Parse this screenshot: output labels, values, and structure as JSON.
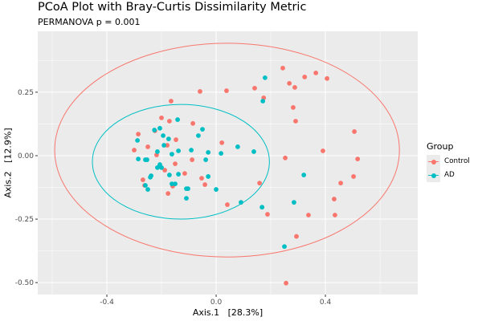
{
  "chart_data": {
    "type": "scatter",
    "title": "PCoA Plot with Bray-Curtis Dissimilarity Metric",
    "subtitle": "PERMANOVA p = 0.001",
    "xlabel": "Axis.1   [28.3%]",
    "ylabel": "Axis.2   [12.9%]",
    "xlim": [
      -0.653,
      0.738
    ],
    "ylim": [
      -0.547,
      0.49
    ],
    "xticks": [
      {
        "value": -0.4,
        "label": "-0.4"
      },
      {
        "value": 0.0,
        "label": "0.0"
      },
      {
        "value": 0.4,
        "label": "0.4"
      }
    ],
    "yticks": [
      {
        "value": 0.25,
        "label": "0.25"
      },
      {
        "value": 0.0,
        "label": "0.00"
      },
      {
        "value": -0.25,
        "label": "-0.25"
      },
      {
        "value": -0.5,
        "label": "-0.50"
      }
    ],
    "grid": true,
    "legend": {
      "title": "Group",
      "position": "right"
    },
    "series": [
      {
        "name": "Control",
        "color": "#F8766D",
        "points": [
          [
            -0.165,
            0.215
          ],
          [
            -0.2,
            0.149
          ],
          [
            -0.171,
            0.136
          ],
          [
            -0.224,
            0.098
          ],
          [
            -0.285,
            0.085
          ],
          [
            -0.25,
            0.035
          ],
          [
            -0.179,
            0.041
          ],
          [
            -0.3,
            0.022
          ],
          [
            -0.147,
            0.063
          ],
          [
            -0.218,
            0.003
          ],
          [
            -0.188,
            -0.057
          ],
          [
            -0.15,
            -0.032
          ],
          [
            -0.115,
            -0.07
          ],
          [
            -0.268,
            -0.095
          ],
          [
            -0.262,
            -0.117
          ],
          [
            -0.159,
            -0.12
          ],
          [
            -0.176,
            -0.149
          ],
          [
            -0.085,
            0.127
          ],
          [
            0.021,
            0.051
          ],
          [
            -0.088,
            -0.016
          ],
          [
            -0.053,
            -0.089
          ],
          [
            -0.041,
            -0.114
          ],
          [
            0.244,
            0.345
          ],
          [
            0.324,
            0.31
          ],
          [
            0.365,
            0.326
          ],
          [
            0.406,
            0.304
          ],
          [
            0.268,
            0.285
          ],
          [
            0.288,
            0.269
          ],
          [
            -0.059,
            0.253
          ],
          [
            0.038,
            0.256
          ],
          [
            0.141,
            0.266
          ],
          [
            0.174,
            0.228
          ],
          [
            0.282,
            0.19
          ],
          [
            0.291,
            0.136
          ],
          [
            0.506,
            0.095
          ],
          [
            0.391,
            0.019
          ],
          [
            0.253,
            -0.009
          ],
          [
            0.518,
            -0.013
          ],
          [
            0.503,
            -0.082
          ],
          [
            0.456,
            -0.108
          ],
          [
            0.159,
            -0.108
          ],
          [
            0.432,
            -0.171
          ],
          [
            0.188,
            -0.231
          ],
          [
            0.338,
            -0.234
          ],
          [
            0.435,
            -0.234
          ],
          [
            0.041,
            -0.193
          ],
          [
            0.294,
            -0.318
          ],
          [
            0.256,
            -0.502
          ]
        ]
      },
      {
        "name": "AD",
        "color": "#00BFC4",
        "points": [
          [
            -0.141,
            0.142
          ],
          [
            -0.206,
            0.108
          ],
          [
            -0.226,
            0.101
          ],
          [
            -0.288,
            0.06
          ],
          [
            -0.194,
            0.079
          ],
          [
            -0.174,
            0.066
          ],
          [
            -0.191,
            0.041
          ],
          [
            -0.138,
            0.019
          ],
          [
            -0.215,
            0.016
          ],
          [
            -0.162,
            0.006
          ],
          [
            -0.285,
            -0.013
          ],
          [
            -0.259,
            -0.016
          ],
          [
            -0.253,
            -0.016
          ],
          [
            -0.206,
            -0.035
          ],
          [
            -0.215,
            -0.047
          ],
          [
            -0.2,
            -0.047
          ],
          [
            -0.171,
            -0.076
          ],
          [
            -0.138,
            -0.073
          ],
          [
            -0.238,
            -0.079
          ],
          [
            -0.241,
            -0.085
          ],
          [
            -0.259,
            -0.117
          ],
          [
            -0.25,
            -0.133
          ],
          [
            -0.162,
            -0.111
          ],
          [
            -0.15,
            -0.111
          ],
          [
            -0.109,
            -0.13
          ],
          [
            -0.109,
            -0.168
          ],
          [
            -0.05,
            0.104
          ],
          [
            -0.065,
            0.079
          ],
          [
            0.079,
            0.035
          ],
          [
            -0.091,
            0.022
          ],
          [
            -0.029,
            0.013
          ],
          [
            0.018,
            0.009
          ],
          [
            -0.038,
            -0.016
          ],
          [
            -0.029,
            -0.082
          ],
          [
            -0.103,
            -0.13
          ],
          [
            0.0,
            -0.133
          ],
          [
            0.179,
            0.307
          ],
          [
            0.171,
            0.215
          ],
          [
            0.138,
            0.016
          ],
          [
            0.321,
            -0.076
          ],
          [
            0.091,
            -0.184
          ],
          [
            0.168,
            -0.203
          ],
          [
            0.285,
            -0.184
          ],
          [
            0.25,
            -0.358
          ]
        ]
      }
    ],
    "ellipses": [
      {
        "group": "Control",
        "center": [
          0.04,
          0.022
        ],
        "radii": [
          0.631,
          0.421
        ]
      },
      {
        "group": "AD",
        "center": [
          -0.129,
          -0.024
        ],
        "radii": [
          0.324,
          0.226
        ]
      }
    ]
  }
}
